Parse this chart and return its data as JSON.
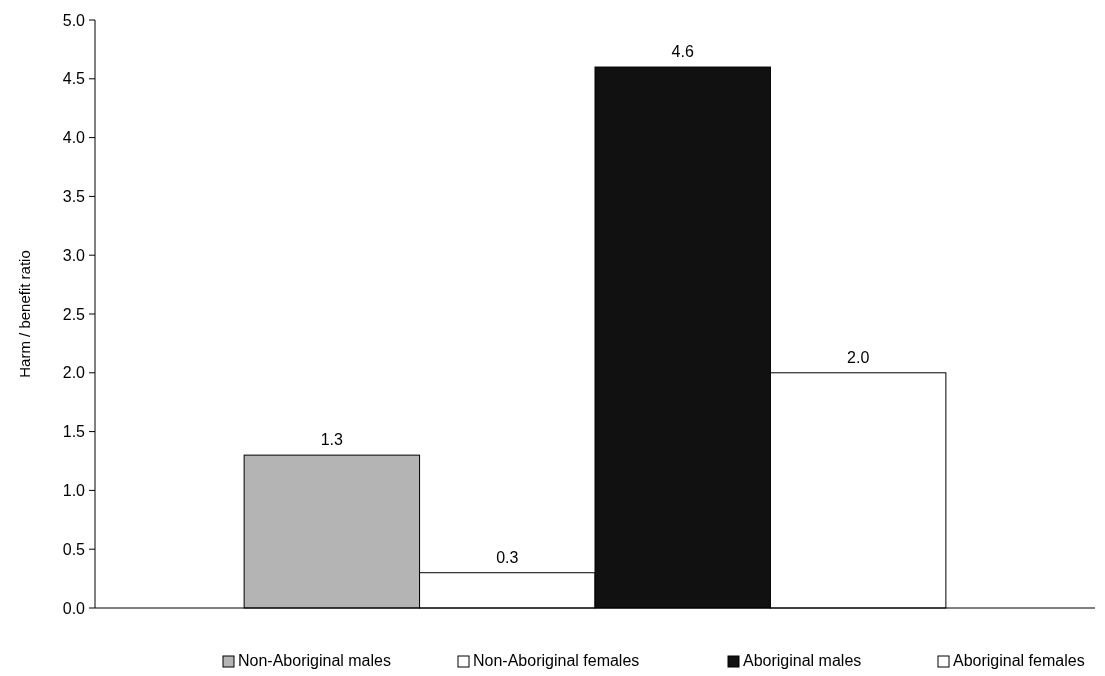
{
  "chart_data": {
    "type": "bar",
    "ylabel": "Harm / benefit ratio",
    "categories": [
      null
    ],
    "series": [
      {
        "name": "Non-Aboriginal males",
        "color": "#b4b4b4",
        "values": [
          1.3
        ],
        "value_labels": [
          "1.3"
        ]
      },
      {
        "name": "Non-Aboriginal females",
        "color": "#ffffff",
        "values": [
          0.3
        ],
        "value_labels": [
          "0.3"
        ]
      },
      {
        "name": "Aboriginal males",
        "color": "#111111",
        "values": [
          4.6
        ],
        "value_labels": [
          "4.6"
        ]
      },
      {
        "name": "Aboriginal females",
        "color": "#ffffff",
        "values": [
          2.0
        ],
        "value_labels": [
          "2.0"
        ]
      }
    ],
    "ylim": [
      0,
      5
    ],
    "yticks": [
      {
        "value": 0,
        "label": "0.0"
      },
      {
        "value": 0.5,
        "label": "0.5"
      },
      {
        "value": 1,
        "label": "1.0"
      },
      {
        "value": 1.5,
        "label": "1.5"
      },
      {
        "value": 2,
        "label": "2.0"
      },
      {
        "value": 2.5,
        "label": "2.5"
      },
      {
        "value": 3,
        "label": "3.0"
      },
      {
        "value": 3.5,
        "label": "3.5"
      },
      {
        "value": 4,
        "label": "4.0"
      },
      {
        "value": 4.5,
        "label": "4.5"
      },
      {
        "value": 5,
        "label": "5.0"
      }
    ],
    "legend": "bottom",
    "grid": false
  }
}
